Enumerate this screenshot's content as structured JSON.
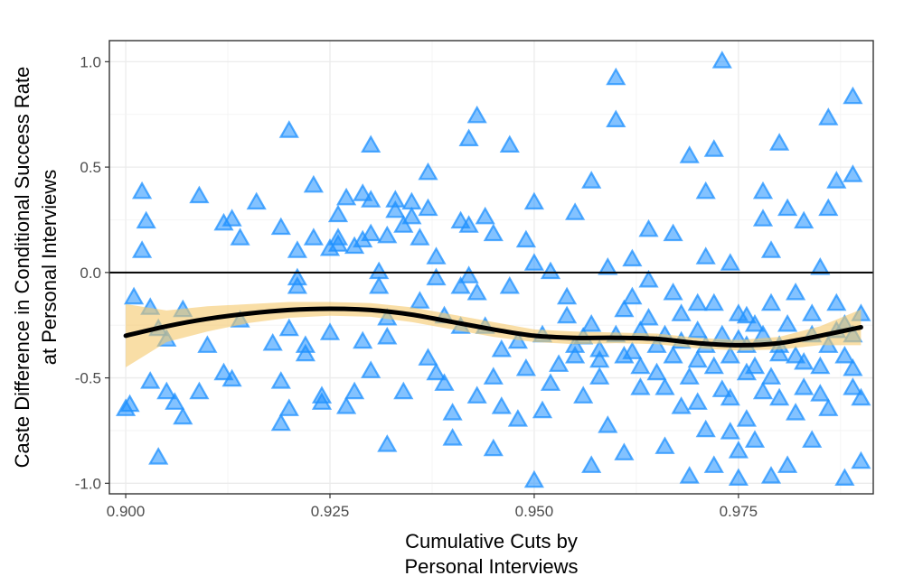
{
  "chart_data": {
    "type": "scatter",
    "xlabel_lines": [
      "Cumulative Cuts by",
      "Personal Interviews"
    ],
    "ylabel_lines": [
      "Caste Difference in Conditional Success Rate",
      "at Personal Interviews"
    ],
    "xlim": [
      0.898,
      0.9915
    ],
    "ylim": [
      -1.05,
      1.1
    ],
    "x_ticks": [
      0.9,
      0.925,
      0.95,
      0.975
    ],
    "x_tick_labels": [
      "0.900",
      "0.925",
      "0.950",
      "0.975"
    ],
    "y_ticks": [
      1.0,
      0.5,
      0.0,
      -0.5,
      -1.0
    ],
    "y_tick_labels": [
      "1.0",
      "0.5",
      "0.0",
      "-0.5",
      "-1.0"
    ],
    "grid": true,
    "reference_line_y": 0.0,
    "marker": "triangle",
    "colors": {
      "points": "#1E90FF",
      "smooth_line": "#000000",
      "confidence_band": "#F5C86A",
      "reference_line": "#000000",
      "grid": "#EBEBEB",
      "panel_border": "#333333"
    },
    "series": [
      {
        "type": "scatter",
        "points": [
          [
            0.9,
            -0.65
          ],
          [
            0.9005,
            -0.63
          ],
          [
            0.901,
            -0.12
          ],
          [
            0.902,
            0.1
          ],
          [
            0.902,
            0.38
          ],
          [
            0.9025,
            0.24
          ],
          [
            0.903,
            -0.17
          ],
          [
            0.903,
            -0.52
          ],
          [
            0.904,
            -0.27
          ],
          [
            0.904,
            -0.88
          ],
          [
            0.905,
            -0.32
          ],
          [
            0.905,
            -0.57
          ],
          [
            0.906,
            -0.62
          ],
          [
            0.907,
            -0.69
          ],
          [
            0.907,
            -0.18
          ],
          [
            0.909,
            -0.57
          ],
          [
            0.909,
            0.36
          ],
          [
            0.91,
            -0.35
          ],
          [
            0.912,
            -0.48
          ],
          [
            0.912,
            0.23
          ],
          [
            0.913,
            0.25
          ],
          [
            0.913,
            -0.51
          ],
          [
            0.914,
            0.16
          ],
          [
            0.914,
            -0.23
          ],
          [
            0.916,
            0.33
          ],
          [
            0.918,
            -0.34
          ],
          [
            0.919,
            -0.52
          ],
          [
            0.919,
            0.21
          ],
          [
            0.919,
            -0.72
          ],
          [
            0.92,
            -0.65
          ],
          [
            0.92,
            0.67
          ],
          [
            0.92,
            -0.27
          ],
          [
            0.921,
            -0.07
          ],
          [
            0.921,
            -0.03
          ],
          [
            0.921,
            0.1
          ],
          [
            0.922,
            -0.35
          ],
          [
            0.922,
            -0.39
          ],
          [
            0.923,
            0.16
          ],
          [
            0.923,
            0.41
          ],
          [
            0.924,
            -0.59
          ],
          [
            0.924,
            -0.62
          ],
          [
            0.925,
            0.11
          ],
          [
            0.925,
            -0.29
          ],
          [
            0.926,
            0.13
          ],
          [
            0.926,
            0.16
          ],
          [
            0.926,
            0.27
          ],
          [
            0.927,
            0.35
          ],
          [
            0.927,
            -0.64
          ],
          [
            0.928,
            0.12
          ],
          [
            0.928,
            -0.57
          ],
          [
            0.929,
            0.37
          ],
          [
            0.929,
            -0.33
          ],
          [
            0.929,
            0.15
          ],
          [
            0.93,
            0.34
          ],
          [
            0.93,
            0.18
          ],
          [
            0.93,
            -0.47
          ],
          [
            0.93,
            0.6
          ],
          [
            0.931,
            -0.07
          ],
          [
            0.931,
            0.0
          ],
          [
            0.932,
            -0.22
          ],
          [
            0.932,
            -0.31
          ],
          [
            0.932,
            0.17
          ],
          [
            0.932,
            -0.82
          ],
          [
            0.933,
            0.34
          ],
          [
            0.933,
            0.29
          ],
          [
            0.934,
            0.22
          ],
          [
            0.934,
            -0.57
          ],
          [
            0.935,
            0.33
          ],
          [
            0.935,
            0.26
          ],
          [
            0.936,
            -0.14
          ],
          [
            0.936,
            0.16
          ],
          [
            0.937,
            0.47
          ],
          [
            0.937,
            0.3
          ],
          [
            0.937,
            -0.41
          ],
          [
            0.938,
            0.07
          ],
          [
            0.938,
            -0.03
          ],
          [
            0.938,
            -0.48
          ],
          [
            0.939,
            -0.53
          ],
          [
            0.939,
            -0.21
          ],
          [
            0.94,
            -0.79
          ],
          [
            0.94,
            -0.67
          ],
          [
            0.941,
            0.24
          ],
          [
            0.941,
            -0.07
          ],
          [
            0.941,
            -0.26
          ],
          [
            0.942,
            -0.02
          ],
          [
            0.942,
            0.63
          ],
          [
            0.942,
            0.22
          ],
          [
            0.943,
            -0.59
          ],
          [
            0.943,
            -0.1
          ],
          [
            0.943,
            0.74
          ],
          [
            0.944,
            -0.26
          ],
          [
            0.944,
            0.26
          ],
          [
            0.945,
            -0.5
          ],
          [
            0.945,
            -0.84
          ],
          [
            0.945,
            0.18
          ],
          [
            0.946,
            -0.37
          ],
          [
            0.946,
            -0.64
          ],
          [
            0.947,
            0.6
          ],
          [
            0.947,
            -0.07
          ],
          [
            0.948,
            -0.7
          ],
          [
            0.948,
            -0.33
          ],
          [
            0.949,
            -0.46
          ],
          [
            0.949,
            0.15
          ],
          [
            0.95,
            -0.99
          ],
          [
            0.95,
            0.33
          ],
          [
            0.95,
            0.04
          ],
          [
            0.951,
            -0.3
          ],
          [
            0.951,
            -0.66
          ],
          [
            0.952,
            -0.53
          ],
          [
            0.952,
            0.0
          ],
          [
            0.953,
            -0.44
          ],
          [
            0.954,
            -0.21
          ],
          [
            0.954,
            -0.12
          ],
          [
            0.955,
            -0.35
          ],
          [
            0.955,
            0.28
          ],
          [
            0.956,
            -0.31
          ],
          [
            0.956,
            -0.59
          ],
          [
            0.957,
            0.43
          ],
          [
            0.957,
            -0.92
          ],
          [
            0.958,
            -0.37
          ],
          [
            0.958,
            -0.5
          ],
          [
            0.959,
            -0.73
          ],
          [
            0.959,
            0.02
          ],
          [
            0.96,
            0.92
          ],
          [
            0.96,
            0.72
          ],
          [
            0.961,
            -0.86
          ],
          [
            0.961,
            -0.4
          ],
          [
            0.962,
            -0.12
          ],
          [
            0.962,
            0.06
          ],
          [
            0.963,
            -0.55
          ],
          [
            0.963,
            -0.28
          ],
          [
            0.964,
            0.2
          ],
          [
            0.964,
            -0.04
          ],
          [
            0.965,
            -0.48
          ],
          [
            0.966,
            -0.83
          ],
          [
            0.966,
            -0.3
          ],
          [
            0.967,
            0.18
          ],
          [
            0.968,
            -0.2
          ],
          [
            0.968,
            -0.64
          ],
          [
            0.969,
            -0.97
          ],
          [
            0.969,
            0.55
          ],
          [
            0.97,
            -0.15
          ],
          [
            0.97,
            -0.42
          ],
          [
            0.971,
            0.07
          ],
          [
            0.971,
            0.38
          ],
          [
            0.972,
            0.58
          ],
          [
            0.972,
            -0.92
          ],
          [
            0.973,
            1.0
          ],
          [
            0.973,
            -0.56
          ],
          [
            0.974,
            -0.76
          ],
          [
            0.974,
            0.04
          ],
          [
            0.975,
            -0.32
          ],
          [
            0.975,
            -0.98
          ],
          [
            0.976,
            -0.48
          ],
          [
            0.976,
            -0.21
          ],
          [
            0.977,
            -0.8
          ],
          [
            0.978,
            0.25
          ],
          [
            0.978,
            -0.57
          ],
          [
            0.978,
            0.38
          ],
          [
            0.979,
            -0.97
          ],
          [
            0.979,
            0.1
          ],
          [
            0.98,
            0.61
          ],
          [
            0.98,
            -0.39
          ],
          [
            0.981,
            -0.92
          ],
          [
            0.981,
            0.3
          ],
          [
            0.982,
            -0.67
          ],
          [
            0.983,
            -0.43
          ],
          [
            0.983,
            0.24
          ],
          [
            0.984,
            -0.8
          ],
          [
            0.985,
            -0.58
          ],
          [
            0.985,
            0.02
          ],
          [
            0.986,
            0.73
          ],
          [
            0.986,
            0.3
          ],
          [
            0.987,
            -0.28
          ],
          [
            0.987,
            0.43
          ],
          [
            0.988,
            -0.98
          ],
          [
            0.989,
            -0.46
          ],
          [
            0.989,
            0.83
          ],
          [
            0.989,
            0.46
          ],
          [
            0.99,
            -0.9
          ],
          [
            0.955,
            -0.4
          ],
          [
            0.957,
            -0.25
          ],
          [
            0.958,
            -0.42
          ],
          [
            0.96,
            -0.3
          ],
          [
            0.961,
            -0.18
          ],
          [
            0.962,
            -0.38
          ],
          [
            0.963,
            -0.45
          ],
          [
            0.964,
            -0.22
          ],
          [
            0.965,
            -0.35
          ],
          [
            0.966,
            -0.55
          ],
          [
            0.967,
            -0.4
          ],
          [
            0.967,
            -0.1
          ],
          [
            0.968,
            -0.33
          ],
          [
            0.969,
            -0.5
          ],
          [
            0.97,
            -0.28
          ],
          [
            0.97,
            -0.62
          ],
          [
            0.971,
            -0.35
          ],
          [
            0.972,
            -0.45
          ],
          [
            0.972,
            -0.15
          ],
          [
            0.973,
            -0.3
          ],
          [
            0.974,
            -0.4
          ],
          [
            0.974,
            -0.6
          ],
          [
            0.975,
            -0.2
          ],
          [
            0.976,
            -0.35
          ],
          [
            0.976,
            -0.7
          ],
          [
            0.977,
            -0.25
          ],
          [
            0.977,
            -0.45
          ],
          [
            0.978,
            -0.3
          ],
          [
            0.979,
            -0.5
          ],
          [
            0.979,
            -0.15
          ],
          [
            0.98,
            -0.35
          ],
          [
            0.98,
            -0.6
          ],
          [
            0.981,
            -0.25
          ],
          [
            0.982,
            -0.4
          ],
          [
            0.982,
            -0.1
          ],
          [
            0.983,
            -0.55
          ],
          [
            0.984,
            -0.3
          ],
          [
            0.984,
            -0.2
          ],
          [
            0.985,
            -0.45
          ],
          [
            0.986,
            -0.35
          ],
          [
            0.986,
            -0.65
          ],
          [
            0.987,
            -0.15
          ],
          [
            0.988,
            -0.4
          ],
          [
            0.988,
            -0.25
          ],
          [
            0.989,
            -0.55
          ],
          [
            0.989,
            -0.3
          ],
          [
            0.99,
            -0.2
          ],
          [
            0.99,
            -0.6
          ],
          [
            0.971,
            -0.75
          ],
          [
            0.975,
            -0.85
          ]
        ]
      },
      {
        "type": "smooth_line",
        "x": [
          0.9,
          0.905,
          0.91,
          0.915,
          0.92,
          0.925,
          0.93,
          0.935,
          0.94,
          0.945,
          0.95,
          0.955,
          0.96,
          0.965,
          0.97,
          0.975,
          0.98,
          0.985,
          0.99
        ],
        "y": [
          -0.3,
          -0.255,
          -0.22,
          -0.195,
          -0.178,
          -0.172,
          -0.178,
          -0.2,
          -0.235,
          -0.27,
          -0.3,
          -0.31,
          -0.31,
          -0.315,
          -0.335,
          -0.345,
          -0.335,
          -0.3,
          -0.26
        ],
        "lower": [
          -0.45,
          -0.33,
          -0.28,
          -0.24,
          -0.215,
          -0.205,
          -0.21,
          -0.235,
          -0.27,
          -0.305,
          -0.33,
          -0.34,
          -0.335,
          -0.34,
          -0.36,
          -0.37,
          -0.365,
          -0.345,
          -0.345
        ],
        "upper": [
          -0.15,
          -0.18,
          -0.16,
          -0.15,
          -0.14,
          -0.14,
          -0.145,
          -0.165,
          -0.2,
          -0.235,
          -0.27,
          -0.28,
          -0.285,
          -0.29,
          -0.31,
          -0.32,
          -0.305,
          -0.255,
          -0.175
        ]
      }
    ]
  }
}
